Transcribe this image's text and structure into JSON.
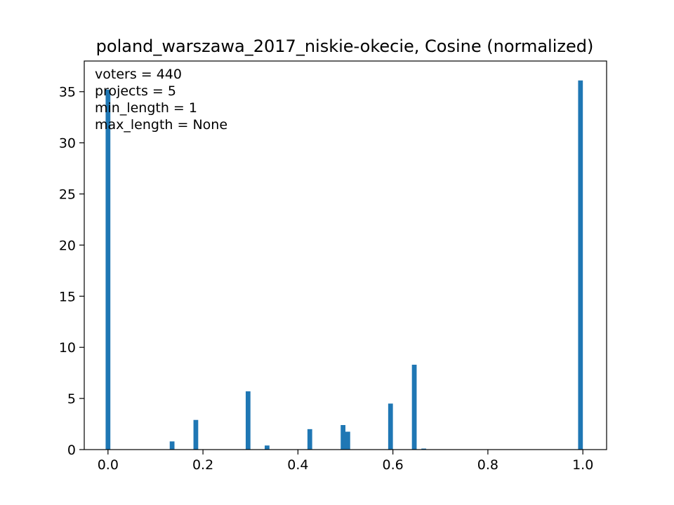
{
  "chart_data": {
    "type": "bar",
    "title": "poland_warszawa_2017_niskie-okecie, Cosine (normalized)",
    "xlabel": "",
    "ylabel": "",
    "xlim": [
      -0.05,
      1.05
    ],
    "ylim": [
      0,
      38
    ],
    "xticks": [
      0.0,
      0.2,
      0.4,
      0.6,
      0.8,
      1.0
    ],
    "xtick_labels": [
      "0.0",
      "0.2",
      "0.4",
      "0.6",
      "0.8",
      "1.0"
    ],
    "yticks": [
      0,
      5,
      10,
      15,
      20,
      25,
      30,
      35
    ],
    "ytick_labels": [
      "0",
      "5",
      "10",
      "15",
      "20",
      "25",
      "30",
      "35"
    ],
    "bin_width": 0.01,
    "bars": [
      {
        "x": 0.0,
        "value": 35.2
      },
      {
        "x": 0.135,
        "value": 0.8
      },
      {
        "x": 0.185,
        "value": 2.9
      },
      {
        "x": 0.295,
        "value": 5.7
      },
      {
        "x": 0.335,
        "value": 0.4
      },
      {
        "x": 0.425,
        "value": 2.0
      },
      {
        "x": 0.495,
        "value": 2.4
      },
      {
        "x": 0.505,
        "value": 1.75
      },
      {
        "x": 0.595,
        "value": 4.5
      },
      {
        "x": 0.645,
        "value": 8.3
      },
      {
        "x": 0.665,
        "value": 0.1
      },
      {
        "x": 0.995,
        "value": 36.1
      }
    ],
    "annotations": [
      "voters = 440",
      "projects = 5",
      "min_length = 1",
      "max_length = None"
    ],
    "bar_color": "#1f77b4",
    "grid": false,
    "legend": "none"
  }
}
